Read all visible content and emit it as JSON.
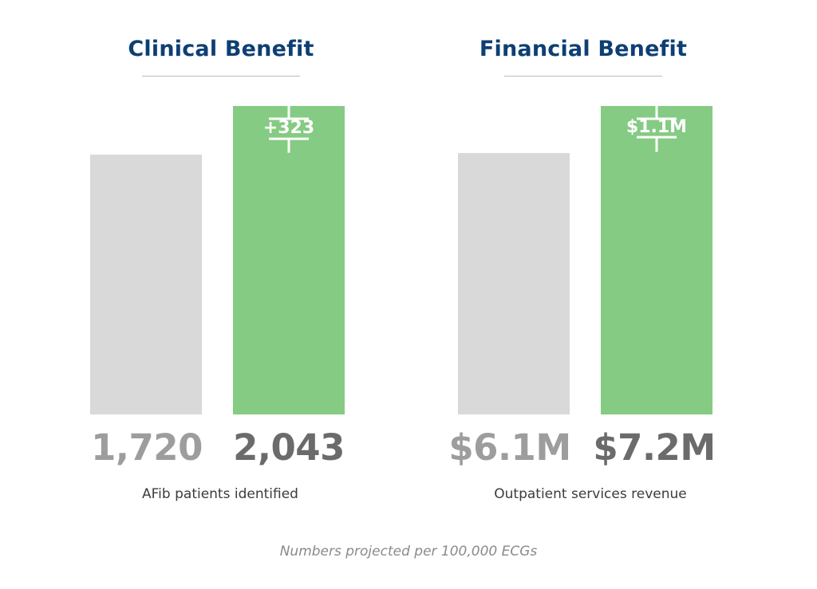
{
  "chart_data": [
    {
      "type": "bar",
      "title": "Clinical Benefit",
      "categories": [
        "1,720",
        "2,043"
      ],
      "values": [
        1720,
        2043
      ],
      "value_labels": [
        "1,720",
        "2,043"
      ],
      "difference_label": "+323",
      "xlabel": "AFib patients identified",
      "ylabel": "",
      "colors": [
        "#d9d9d9",
        "#85cb83"
      ]
    },
    {
      "type": "bar",
      "title": "Financial Benefit",
      "categories": [
        "$6.1M",
        "$7.2M"
      ],
      "values": [
        6.1,
        7.2
      ],
      "value_labels": [
        "$6.1M",
        "$7.2M"
      ],
      "difference_label": "$1.1M",
      "xlabel": "Outpatient services revenue",
      "ylabel": "",
      "colors": [
        "#d9d9d9",
        "#85cb83"
      ]
    }
  ],
  "footnote": "Numbers projected per 100,000 ECGs",
  "colors": {
    "title": "#0d3f73",
    "baseline_bar": "#d9d9d9",
    "improved_bar": "#85cb83",
    "baseline_value": "#9d9d9d",
    "improved_value": "#6b6b6b"
  }
}
